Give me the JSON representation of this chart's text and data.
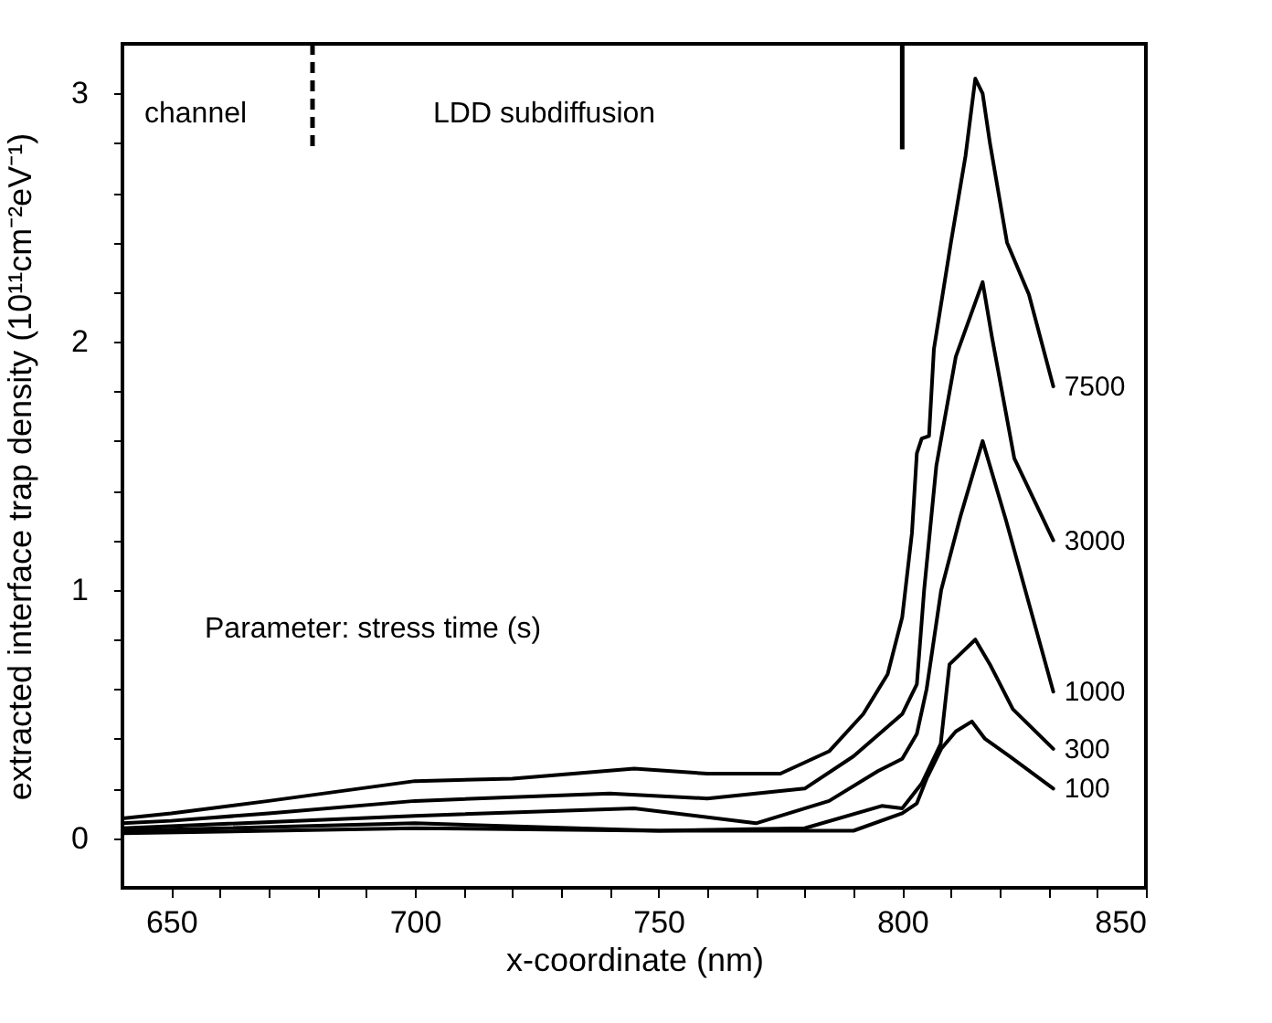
{
  "chart_data": {
    "type": "line",
    "xlabel": "x-coordinate  (nm)",
    "ylabel": "extracted interface trap density (10¹¹cm⁻²eV⁻¹)",
    "xlim": [
      640,
      850
    ],
    "ylim": [
      -0.2,
      3.2
    ],
    "xticks": [
      650,
      {
        "value": 660,
        "label": null
      },
      {
        "value": 670,
        "label": null
      },
      {
        "value": 680,
        "label": null
      },
      {
        "value": 690,
        "label": null
      },
      700,
      {
        "value": 710,
        "label": null
      },
      {
        "value": 720,
        "label": null
      },
      {
        "value": 730,
        "label": null
      },
      {
        "value": 740,
        "label": null
      },
      750,
      {
        "value": 760,
        "label": null
      },
      {
        "value": 770,
        "label": null
      },
      {
        "value": 780,
        "label": null
      },
      {
        "value": 790,
        "label": null
      },
      800,
      {
        "value": 810,
        "label": null
      },
      {
        "value": 820,
        "label": null
      },
      {
        "value": 830,
        "label": null
      },
      {
        "value": 840,
        "label": null
      },
      850
    ],
    "yticks": [
      0,
      {
        "value": 0.2,
        "label": null
      },
      {
        "value": 0.4,
        "label": null
      },
      {
        "value": 0.6,
        "label": null
      },
      {
        "value": 0.8,
        "label": null
      },
      1,
      {
        "value": 1.2,
        "label": null
      },
      {
        "value": 1.4,
        "label": null
      },
      {
        "value": 1.6,
        "label": null
      },
      {
        "value": 1.8,
        "label": null
      },
      2,
      {
        "value": 2.2,
        "label": null
      },
      {
        "value": 2.4,
        "label": null
      },
      {
        "value": 2.6,
        "label": null
      },
      {
        "value": 2.8,
        "label": null
      },
      3
    ],
    "grid": false,
    "marker": "none",
    "line_style": "solid",
    "series": [
      {
        "name": "7500",
        "color": "#000000",
        "x": [
          640,
          650,
          670,
          700,
          720,
          745,
          760,
          775,
          785,
          792,
          797,
          800,
          802,
          803,
          804,
          805.5,
          806.5,
          810,
          813,
          815,
          816.5,
          818,
          821.5,
          826,
          831
        ],
        "values": [
          0.08,
          0.1,
          0.15,
          0.23,
          0.24,
          0.28,
          0.26,
          0.26,
          0.35,
          0.5,
          0.66,
          0.89,
          1.23,
          1.55,
          1.61,
          1.62,
          1.97,
          2.4,
          2.75,
          3.06,
          3.0,
          2.8,
          2.4,
          2.19,
          1.82
        ]
      },
      {
        "name": "3000",
        "color": "#000000",
        "x": [
          640,
          650,
          670,
          700,
          740,
          760,
          780,
          790,
          800,
          803,
          804.5,
          807,
          811,
          816.5,
          818.4,
          823,
          831
        ],
        "values": [
          0.06,
          0.07,
          0.1,
          0.15,
          0.18,
          0.16,
          0.2,
          0.33,
          0.5,
          0.62,
          1.0,
          1.5,
          1.94,
          2.24,
          2.02,
          1.53,
          1.2
        ]
      },
      {
        "name": "1000",
        "color": "#000000",
        "x": [
          640,
          700,
          745,
          770,
          785,
          795,
          800,
          803,
          805,
          808,
          812,
          816.5,
          821.3,
          831
        ],
        "values": [
          0.04,
          0.09,
          0.12,
          0.06,
          0.15,
          0.27,
          0.32,
          0.42,
          0.6,
          1.0,
          1.3,
          1.6,
          1.28,
          0.59
        ]
      },
      {
        "name": "300",
        "color": "#000000",
        "x": [
          640,
          700,
          750,
          780,
          795.8,
          800,
          804,
          807.9,
          809.7,
          815,
          818,
          822.7,
          831
        ],
        "values": [
          0.03,
          0.06,
          0.03,
          0.04,
          0.13,
          0.12,
          0.22,
          0.38,
          0.7,
          0.8,
          0.7,
          0.52,
          0.36
        ]
      },
      {
        "name": "100",
        "color": "#000000",
        "x": [
          640,
          700,
          750,
          790,
          800,
          803,
          805,
          808,
          811,
          814.3,
          817,
          822,
          831
        ],
        "values": [
          0.02,
          0.04,
          0.03,
          0.03,
          0.1,
          0.14,
          0.24,
          0.36,
          0.43,
          0.47,
          0.4,
          0.33,
          0.2
        ]
      }
    ],
    "ref_lines": [
      {
        "axis": "x",
        "value": 679,
        "label": null,
        "line_style": "dashed"
      },
      {
        "axis": "x",
        "value": 800,
        "label": null,
        "line_style": "solid"
      }
    ],
    "annotations": [
      "channel",
      "LDD subdiffusion",
      "Parameter: stress time (s)"
    ]
  }
}
